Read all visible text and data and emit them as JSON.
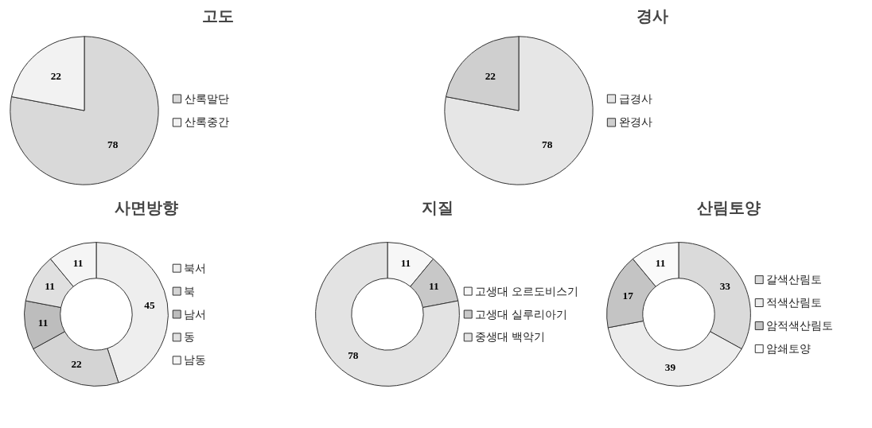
{
  "chart_data": [
    {
      "type": "pie",
      "title": "고도",
      "categories": [
        "산록말단",
        "산록중간"
      ],
      "values": [
        78,
        22
      ],
      "colors": [
        "#d9d9d9",
        "#f2f2f2"
      ],
      "data_labels": true,
      "legend": "right"
    },
    {
      "type": "pie",
      "title": "경사",
      "categories": [
        "급경사",
        "완경사"
      ],
      "values": [
        78,
        22
      ],
      "colors": [
        "#e6e6e6",
        "#cfcfcf"
      ],
      "data_labels": true,
      "legend": "right"
    },
    {
      "type": "donut",
      "title": "사면방향",
      "categories": [
        "북서",
        "북",
        "남서",
        "동",
        "남동"
      ],
      "values": [
        45,
        22,
        11,
        11,
        11
      ],
      "colors": [
        "#eeeeee",
        "#d4d4d4",
        "#bdbdbd",
        "#e0e0e0",
        "#f5f5f5"
      ],
      "data_labels": true,
      "legend": "right"
    },
    {
      "type": "donut",
      "title": "지질",
      "categories": [
        "고생대 오르도비스기",
        "고생대 실루리아기",
        "중생대 백악기"
      ],
      "values": [
        11,
        11,
        78
      ],
      "colors": [
        "#f7f7f7",
        "#c8c8c8",
        "#e3e3e3"
      ],
      "data_labels": true,
      "legend": "right"
    },
    {
      "type": "donut",
      "title": "산림토양",
      "categories": [
        "갈색산림토",
        "적색산림토",
        "암적색산림토",
        "암쇄토양"
      ],
      "values": [
        33,
        39,
        17,
        11
      ],
      "colors": [
        "#dadada",
        "#ececec",
        "#c4c4c4",
        "#fafafa"
      ],
      "data_labels": true,
      "legend": "right"
    }
  ]
}
